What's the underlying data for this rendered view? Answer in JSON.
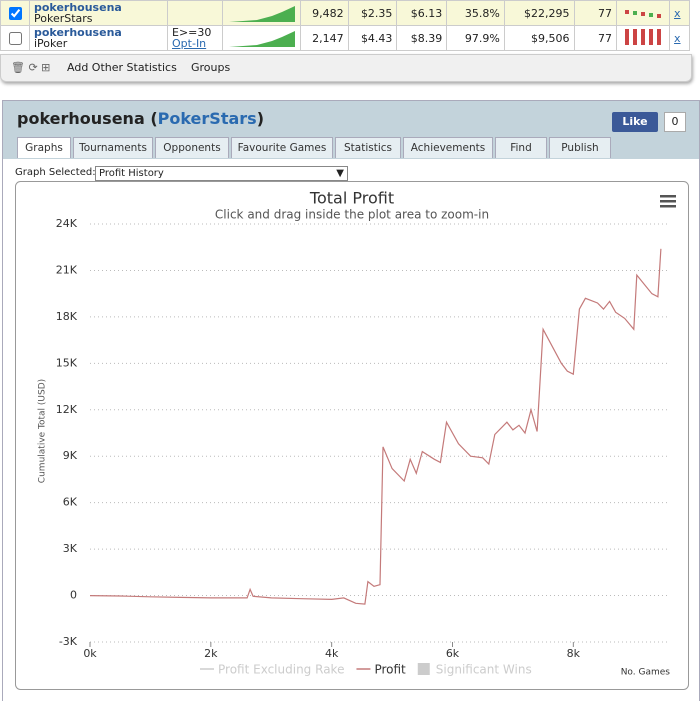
{
  "stats_table": {
    "rows": [
      {
        "name": "pokerhousena",
        "site": "PokerStars",
        "filter": null,
        "filter_link": null,
        "hands": "9,482",
        "c1": "$2.35",
        "c2": "$6.13",
        "c3": "35.8%",
        "profit": "$22,295",
        "c4": "77",
        "remove": "x"
      },
      {
        "name": "pokerhousena",
        "site": "iPoker",
        "filter": "E>=30",
        "filter_link": "Opt-In",
        "hands": "2,147",
        "c1": "$4.43",
        "c2": "$8.39",
        "c3": "97.9%",
        "profit": "$9,506",
        "c4": "77",
        "remove": "x"
      }
    ],
    "toolbar": {
      "add": "Add Other Statistics",
      "groups": "Groups"
    }
  },
  "profile": {
    "title_parts": [
      "pokerhousena",
      "(",
      "PokerStars",
      ")"
    ],
    "like": "Like",
    "like_count": "0",
    "tabs": [
      "Graphs",
      "Tournaments",
      "Opponents",
      "Favourite Games",
      "Statistics",
      "Achievements",
      "Find",
      "Publish"
    ],
    "graph_selected_label": "Graph Selected:",
    "graph_selected": "Profit History"
  },
  "chart_data": {
    "type": "line",
    "title": "Total Profit",
    "subtitle": "Click and drag inside the plot area to zoom-in",
    "y_label": "Cumulative Total (USD)",
    "x_label": "No. Games",
    "xlim": [
      0,
      9600
    ],
    "ylim": [
      -3000,
      24000
    ],
    "xticks": [
      {
        "value": 0,
        "label": "0k"
      },
      {
        "value": 2000,
        "label": "2k"
      },
      {
        "value": 4000,
        "label": "4k"
      },
      {
        "value": 6000,
        "label": "6k"
      },
      {
        "value": 8000,
        "label": "8k"
      }
    ],
    "yticks": [
      {
        "value": -3000,
        "label": "-3K"
      },
      0,
      {
        "value": 3000,
        "label": "3K"
      },
      {
        "value": 6000,
        "label": "6K"
      },
      {
        "value": 9000,
        "label": "9K"
      },
      {
        "value": 12000,
        "label": "12K"
      },
      {
        "value": 15000,
        "label": "15K"
      },
      {
        "value": 18000,
        "label": "18K"
      },
      {
        "value": 21000,
        "label": "21K"
      },
      {
        "value": 24000,
        "label": "24K"
      }
    ],
    "grid": true,
    "series": [
      {
        "name": "Profit",
        "color": "#c47a7a",
        "x": [
          0,
          500,
          1000,
          1500,
          2000,
          2600,
          2650,
          2700,
          3000,
          3500,
          4000,
          4200,
          4400,
          4550,
          4600,
          4700,
          4800,
          4850,
          5000,
          5200,
          5300,
          5400,
          5500,
          5700,
          5800,
          5900,
          6100,
          6300,
          6500,
          6600,
          6700,
          6900,
          7000,
          7100,
          7200,
          7300,
          7400,
          7500,
          7800,
          7900,
          8000,
          8100,
          8200,
          8400,
          8500,
          8600,
          8700,
          8850,
          9000,
          9050,
          9300,
          9400,
          9450
        ],
        "values": [
          0,
          -30,
          -80,
          -120,
          -150,
          -150,
          400,
          -50,
          -150,
          -200,
          -250,
          -150,
          -500,
          -550,
          900,
          600,
          700,
          9600,
          8200,
          7400,
          8800,
          7900,
          9300,
          8800,
          8600,
          11200,
          9800,
          9000,
          8900,
          8500,
          10400,
          11200,
          10700,
          11000,
          10500,
          12000,
          10600,
          17200,
          15000,
          14500,
          14300,
          18500,
          19200,
          18900,
          18500,
          19000,
          18300,
          17900,
          17200,
          20700,
          19500,
          19300,
          22400
        ]
      }
    ],
    "legend_hidden": [
      {
        "name": "Profit Excluding Rake",
        "color": "#cccccc"
      },
      {
        "name": "Significant Wins",
        "color": "#cccccc"
      }
    ]
  }
}
